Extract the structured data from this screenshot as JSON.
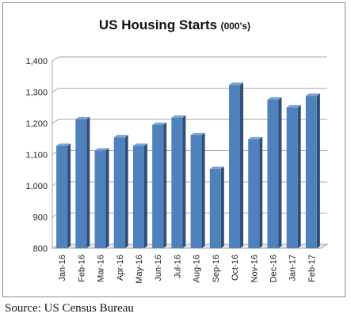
{
  "chart_data": {
    "type": "bar",
    "title": "US Housing Starts",
    "subtitle": "(000's)",
    "xlabel": "",
    "ylabel": "",
    "categories": [
      "Jan-16",
      "Feb-16",
      "Mar-16",
      "Apr-16",
      "May-16",
      "Jun-16",
      "Jul-16",
      "Aug-16",
      "Sep-16",
      "Oct-16",
      "Nov-16",
      "Dec-16",
      "Jan-17",
      "Feb-17"
    ],
    "values": [
      1128,
      1213,
      1113,
      1155,
      1128,
      1195,
      1218,
      1162,
      1054,
      1323,
      1149,
      1276,
      1251,
      1288
    ],
    "ylim": [
      800,
      1400
    ],
    "yticks": [
      800,
      900,
      1000,
      1100,
      1200,
      1300,
      1400
    ],
    "ytick_labels": [
      "800",
      "900",
      "1,000",
      "1,100",
      "1,200",
      "1,300",
      "1,400"
    ],
    "grid": true,
    "bar_color": "#4f81bd",
    "legend": "none"
  },
  "source": "Source: US Census Bureau"
}
